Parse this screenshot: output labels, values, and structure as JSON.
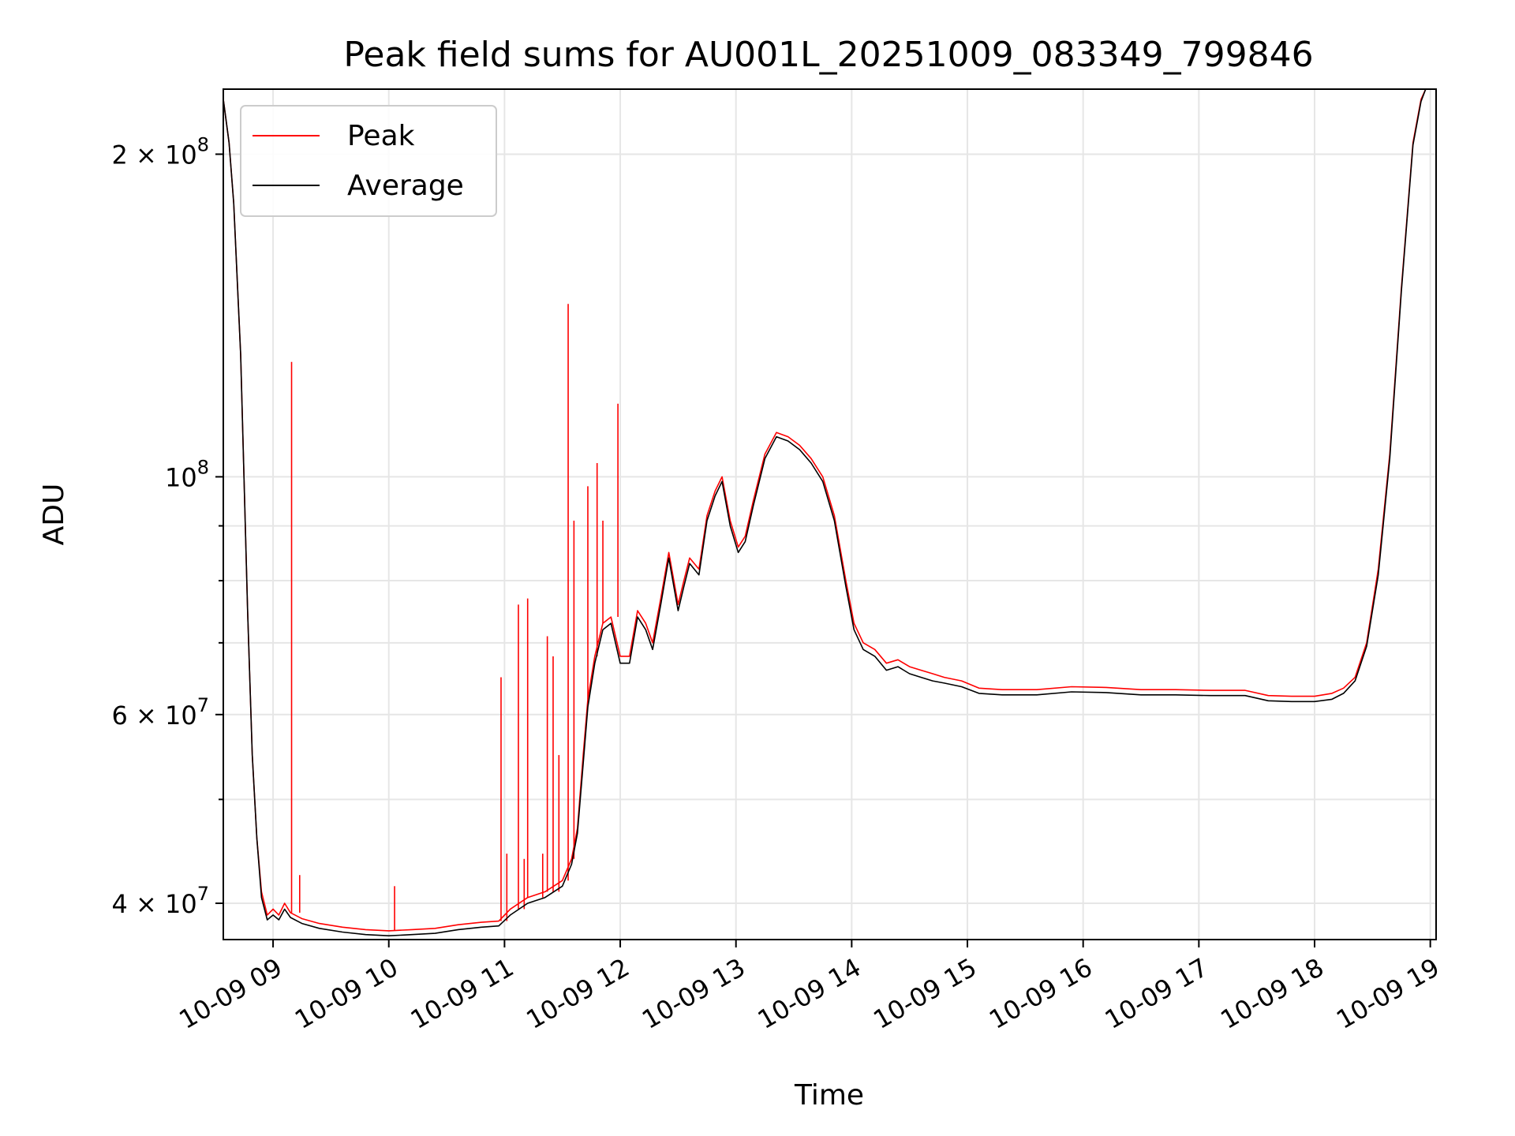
{
  "chart_data": {
    "type": "line",
    "title": "Peak field sums for AU001L_20251009_083349_799846",
    "xlabel": "Time",
    "ylabel": "ADU",
    "yscale": "log",
    "ylim": [
      37000000,
      230000000
    ],
    "xlim": [
      8.57,
      19.05
    ],
    "grid": true,
    "legend_position": "top-left",
    "x_ticks": [
      {
        "value": 9,
        "label": "10-09 09"
      },
      {
        "value": 10,
        "label": "10-09 10"
      },
      {
        "value": 11,
        "label": "10-09 11"
      },
      {
        "value": 12,
        "label": "10-09 12"
      },
      {
        "value": 13,
        "label": "10-09 13"
      },
      {
        "value": 14,
        "label": "10-09 14"
      },
      {
        "value": 15,
        "label": "10-09 15"
      },
      {
        "value": 16,
        "label": "10-09 16"
      },
      {
        "value": 17,
        "label": "10-09 17"
      },
      {
        "value": 18,
        "label": "10-09 18"
      },
      {
        "value": 19,
        "label": "10-09 19"
      }
    ],
    "y_major_ticks": [
      {
        "value": 40000000,
        "base": "4 × 10",
        "exp": "7"
      },
      {
        "value": 60000000,
        "base": "6 × 10",
        "exp": "7"
      },
      {
        "value": 100000000,
        "base": "10",
        "exp": "8"
      },
      {
        "value": 200000000,
        "base": "2 × 10",
        "exp": "8"
      }
    ],
    "y_minor_ticks": [
      50000000,
      70000000,
      80000000,
      90000000
    ],
    "series": [
      {
        "name": "Peak",
        "color": "#ff0000",
        "points": [
          [
            8.57,
            225000000
          ],
          [
            8.62,
            205000000
          ],
          [
            8.66,
            180000000
          ],
          [
            8.72,
            130000000
          ],
          [
            8.78,
            75000000
          ],
          [
            8.82,
            55000000
          ],
          [
            8.86,
            46000000
          ],
          [
            8.9,
            41000000
          ],
          [
            8.95,
            39000000
          ],
          [
            9.0,
            39500000
          ],
          [
            9.05,
            39000000
          ],
          [
            9.1,
            40000000
          ],
          [
            9.15,
            39200000
          ],
          [
            9.25,
            38700000
          ],
          [
            9.4,
            38300000
          ],
          [
            9.6,
            38000000
          ],
          [
            9.8,
            37800000
          ],
          [
            10.0,
            37700000
          ],
          [
            10.2,
            37800000
          ],
          [
            10.4,
            37900000
          ],
          [
            10.6,
            38200000
          ],
          [
            10.8,
            38400000
          ],
          [
            10.95,
            38500000
          ],
          [
            11.05,
            39500000
          ],
          [
            11.2,
            40500000
          ],
          [
            11.35,
            41000000
          ],
          [
            11.5,
            42000000
          ],
          [
            11.58,
            44000000
          ],
          [
            11.63,
            47000000
          ],
          [
            11.68,
            55000000
          ],
          [
            11.72,
            62000000
          ],
          [
            11.78,
            68000000
          ],
          [
            11.85,
            73000000
          ],
          [
            11.92,
            74000000
          ],
          [
            12.0,
            68000000
          ],
          [
            12.08,
            68000000
          ],
          [
            12.15,
            75000000
          ],
          [
            12.22,
            73000000
          ],
          [
            12.28,
            70000000
          ],
          [
            12.35,
            77000000
          ],
          [
            12.42,
            85000000
          ],
          [
            12.5,
            76000000
          ],
          [
            12.55,
            80000000
          ],
          [
            12.6,
            84000000
          ],
          [
            12.68,
            82000000
          ],
          [
            12.75,
            92000000
          ],
          [
            12.82,
            97000000
          ],
          [
            12.88,
            100000000
          ],
          [
            12.95,
            91000000
          ],
          [
            13.02,
            86000000
          ],
          [
            13.08,
            88000000
          ],
          [
            13.15,
            95000000
          ],
          [
            13.25,
            105000000
          ],
          [
            13.35,
            110000000
          ],
          [
            13.45,
            109000000
          ],
          [
            13.55,
            107000000
          ],
          [
            13.65,
            104000000
          ],
          [
            13.75,
            100000000
          ],
          [
            13.85,
            92000000
          ],
          [
            13.95,
            80000000
          ],
          [
            14.02,
            73000000
          ],
          [
            14.1,
            70000000
          ],
          [
            14.2,
            69000000
          ],
          [
            14.3,
            67000000
          ],
          [
            14.4,
            67500000
          ],
          [
            14.5,
            66500000
          ],
          [
            14.6,
            66000000
          ],
          [
            14.7,
            65500000
          ],
          [
            14.8,
            65000000
          ],
          [
            14.95,
            64500000
          ],
          [
            15.1,
            63500000
          ],
          [
            15.3,
            63300000
          ],
          [
            15.6,
            63300000
          ],
          [
            15.9,
            63700000
          ],
          [
            16.2,
            63600000
          ],
          [
            16.5,
            63300000
          ],
          [
            16.8,
            63300000
          ],
          [
            17.1,
            63200000
          ],
          [
            17.4,
            63200000
          ],
          [
            17.6,
            62500000
          ],
          [
            17.8,
            62400000
          ],
          [
            18.0,
            62400000
          ],
          [
            18.15,
            62800000
          ],
          [
            18.25,
            63500000
          ],
          [
            18.35,
            65000000
          ],
          [
            18.45,
            70000000
          ],
          [
            18.55,
            82000000
          ],
          [
            18.65,
            105000000
          ],
          [
            18.75,
            150000000
          ],
          [
            18.85,
            205000000
          ],
          [
            18.92,
            225000000
          ],
          [
            18.96,
            230000000
          ]
        ],
        "spikes": [
          [
            9.16,
            128000000
          ],
          [
            9.23,
            42500000
          ],
          [
            10.05,
            41500000
          ],
          [
            10.97,
            65000000
          ],
          [
            11.02,
            44500000
          ],
          [
            11.12,
            76000000
          ],
          [
            11.17,
            44000000
          ],
          [
            11.2,
            77000000
          ],
          [
            11.33,
            44500000
          ],
          [
            11.37,
            71000000
          ],
          [
            11.42,
            68000000
          ],
          [
            11.47,
            55000000
          ],
          [
            11.55,
            145000000
          ],
          [
            11.6,
            91000000
          ],
          [
            11.72,
            98000000
          ],
          [
            11.8,
            103000000
          ],
          [
            11.85,
            91000000
          ],
          [
            11.98,
            117000000
          ]
        ]
      },
      {
        "name": "Average",
        "color": "#000000",
        "points": [
          [
            8.57,
            225000000
          ],
          [
            8.62,
            205000000
          ],
          [
            8.66,
            180000000
          ],
          [
            8.72,
            130000000
          ],
          [
            8.78,
            75000000
          ],
          [
            8.82,
            55000000
          ],
          [
            8.86,
            46000000
          ],
          [
            8.9,
            40500000
          ],
          [
            8.95,
            38600000
          ],
          [
            9.0,
            39000000
          ],
          [
            9.05,
            38600000
          ],
          [
            9.1,
            39500000
          ],
          [
            9.15,
            38800000
          ],
          [
            9.25,
            38300000
          ],
          [
            9.4,
            37900000
          ],
          [
            9.6,
            37600000
          ],
          [
            9.8,
            37400000
          ],
          [
            10.0,
            37300000
          ],
          [
            10.2,
            37400000
          ],
          [
            10.4,
            37500000
          ],
          [
            10.6,
            37800000
          ],
          [
            10.8,
            38000000
          ],
          [
            10.95,
            38100000
          ],
          [
            11.05,
            39000000
          ],
          [
            11.2,
            40000000
          ],
          [
            11.35,
            40500000
          ],
          [
            11.5,
            41500000
          ],
          [
            11.58,
            43500000
          ],
          [
            11.63,
            46500000
          ],
          [
            11.68,
            54000000
          ],
          [
            11.72,
            61000000
          ],
          [
            11.78,
            67000000
          ],
          [
            11.85,
            72000000
          ],
          [
            11.92,
            73000000
          ],
          [
            12.0,
            67000000
          ],
          [
            12.08,
            67000000
          ],
          [
            12.15,
            74000000
          ],
          [
            12.22,
            72000000
          ],
          [
            12.28,
            69000000
          ],
          [
            12.35,
            76000000
          ],
          [
            12.42,
            84000000
          ],
          [
            12.5,
            75000000
          ],
          [
            12.55,
            79000000
          ],
          [
            12.6,
            83000000
          ],
          [
            12.68,
            81000000
          ],
          [
            12.75,
            91000000
          ],
          [
            12.82,
            96000000
          ],
          [
            12.88,
            99000000
          ],
          [
            12.95,
            90000000
          ],
          [
            13.02,
            85000000
          ],
          [
            13.08,
            87000000
          ],
          [
            13.15,
            94000000
          ],
          [
            13.25,
            104000000
          ],
          [
            13.35,
            109000000
          ],
          [
            13.45,
            108000000
          ],
          [
            13.55,
            106000000
          ],
          [
            13.65,
            103000000
          ],
          [
            13.75,
            99000000
          ],
          [
            13.85,
            91000000
          ],
          [
            13.95,
            79000000
          ],
          [
            14.02,
            72000000
          ],
          [
            14.1,
            69000000
          ],
          [
            14.2,
            68000000
          ],
          [
            14.3,
            66000000
          ],
          [
            14.4,
            66500000
          ],
          [
            14.5,
            65500000
          ],
          [
            14.6,
            65000000
          ],
          [
            14.7,
            64500000
          ],
          [
            14.8,
            64200000
          ],
          [
            14.95,
            63700000
          ],
          [
            15.1,
            62800000
          ],
          [
            15.3,
            62600000
          ],
          [
            15.6,
            62600000
          ],
          [
            15.9,
            63000000
          ],
          [
            16.2,
            62900000
          ],
          [
            16.5,
            62600000
          ],
          [
            16.8,
            62600000
          ],
          [
            17.1,
            62500000
          ],
          [
            17.4,
            62500000
          ],
          [
            17.6,
            61800000
          ],
          [
            17.8,
            61700000
          ],
          [
            18.0,
            61700000
          ],
          [
            18.15,
            62000000
          ],
          [
            18.25,
            62800000
          ],
          [
            18.35,
            64500000
          ],
          [
            18.45,
            69500000
          ],
          [
            18.55,
            81000000
          ],
          [
            18.65,
            104000000
          ],
          [
            18.75,
            149000000
          ],
          [
            18.85,
            204000000
          ],
          [
            18.92,
            224000000
          ],
          [
            18.96,
            230000000
          ]
        ]
      }
    ]
  }
}
